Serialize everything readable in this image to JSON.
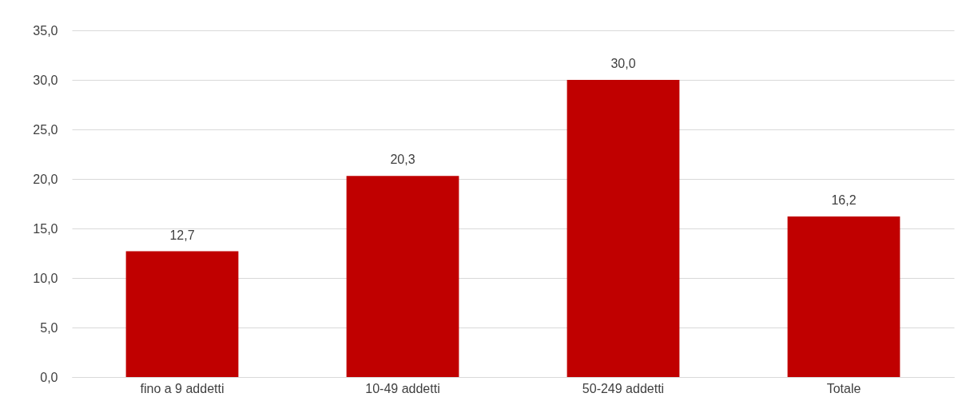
{
  "chart_data": {
    "type": "bar",
    "categories": [
      "fino a 9 addetti",
      "10-49 addetti",
      "50-249 addetti",
      "Totale"
    ],
    "values": [
      12.7,
      20.3,
      30.0,
      16.2
    ],
    "value_labels": [
      "12,7",
      "20,3",
      "30,0",
      "16,2"
    ],
    "color": "#c00000",
    "ylim": [
      0,
      35
    ],
    "yticks": [
      {
        "value": 0,
        "label": "0,0"
      },
      {
        "value": 5,
        "label": "5,0"
      },
      {
        "value": 10,
        "label": "10,0"
      },
      {
        "value": 15,
        "label": "15,0"
      },
      {
        "value": 20,
        "label": "20,0"
      },
      {
        "value": 25,
        "label": "25,0"
      },
      {
        "value": 30,
        "label": "30,0"
      },
      {
        "value": 35,
        "label": "35,0"
      }
    ],
    "grid": "y"
  }
}
